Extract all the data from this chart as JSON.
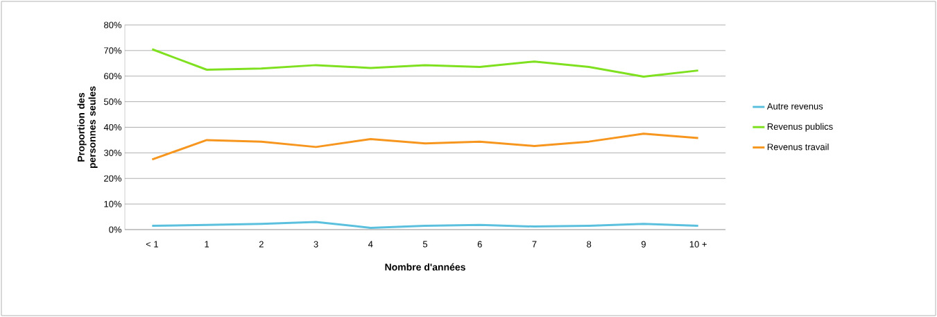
{
  "chart_data": {
    "type": "line",
    "xlabel": "Nombre d'années",
    "ylabel": "Proportion des personnes seules",
    "categories": [
      "< 1",
      "1",
      "2",
      "3",
      "4",
      "5",
      "6",
      "7",
      "8",
      "9",
      "10 +"
    ],
    "series": [
      {
        "name": "Autre revenus",
        "color": "#5bc0de",
        "values": [
          1.5,
          1.8,
          2.2,
          3.0,
          0.7,
          1.5,
          1.8,
          1.2,
          1.5,
          2.2,
          1.5
        ]
      },
      {
        "name": "Revenus publics",
        "color": "#7fe01f",
        "values": [
          70.5,
          62.5,
          63.0,
          64.3,
          63.2,
          64.3,
          63.6,
          65.7,
          63.6,
          59.8,
          62.2
        ]
      },
      {
        "name": "Revenus travail",
        "color": "#f7961e",
        "values": [
          27.4,
          35.0,
          34.4,
          32.3,
          35.4,
          33.7,
          34.4,
          32.7,
          34.4,
          37.5,
          35.8
        ]
      }
    ],
    "ylim": [
      0,
      80
    ],
    "yticks": [
      {
        "value": 0,
        "label": "0%"
      },
      {
        "value": 10,
        "label": "10%"
      },
      {
        "value": 20,
        "label": "20%"
      },
      {
        "value": 30,
        "label": "30%"
      },
      {
        "value": 40,
        "label": "40%"
      },
      {
        "value": 50,
        "label": "50%"
      },
      {
        "value": 60,
        "label": "60%"
      },
      {
        "value": 70,
        "label": "70%"
      },
      {
        "value": 80,
        "label": "80%"
      }
    ],
    "grid": "y",
    "legend": "right",
    "marker": "none",
    "line_style": "solid"
  }
}
